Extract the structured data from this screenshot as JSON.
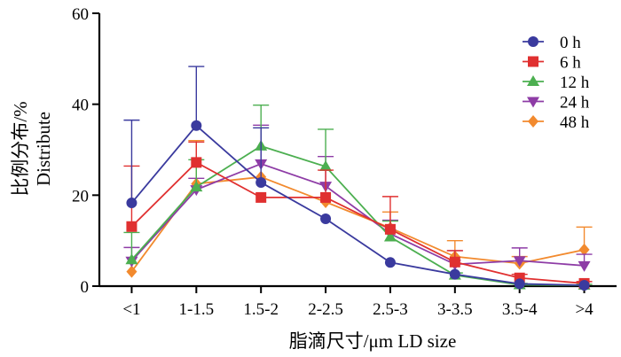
{
  "chart_data": {
    "type": "line",
    "title": "",
    "xlabel": "脂滴尺寸/μm LD size",
    "ylabel_lines": [
      "比例分布/%",
      "Distribute"
    ],
    "ylim": [
      0,
      60
    ],
    "yticks": [
      0,
      20,
      40,
      60
    ],
    "categories": [
      "<1",
      "1-1.5",
      "1.5-2",
      "2-2.5",
      "2.5-3",
      "3-3.5",
      "3.5-4",
      ">4"
    ],
    "legend_position": "top-right",
    "series": [
      {
        "name": "0 h",
        "color": "#3a3a9e",
        "marker": "circle",
        "values": [
          18.3,
          35.3,
          22.8,
          14.8,
          5.2,
          2.6,
          0.5,
          0.2
        ],
        "errors": [
          18.2,
          13.0,
          12.0,
          0,
          0,
          0,
          0,
          0
        ]
      },
      {
        "name": "6 h",
        "color": "#e03030",
        "marker": "square",
        "values": [
          13.1,
          27.2,
          19.5,
          19.5,
          12.5,
          5.3,
          1.8,
          0.6
        ],
        "errors": [
          13.3,
          4.5,
          0,
          6.0,
          7.2,
          2.5,
          0.8,
          0.4
        ]
      },
      {
        "name": "12 h",
        "color": "#4caf50",
        "marker": "triangle-up",
        "values": [
          5.8,
          21.8,
          30.8,
          26.3,
          10.8,
          2.4,
          0.3,
          0.2
        ],
        "errors": [
          6.0,
          6.0,
          9.0,
          8.2,
          3.5,
          0.5,
          0.3,
          0.2
        ]
      },
      {
        "name": "24 h",
        "color": "#8e3ca6",
        "marker": "triangle-down",
        "values": [
          5.5,
          21.2,
          26.9,
          22.0,
          11.5,
          4.8,
          5.6,
          4.5
        ],
        "errors": [
          3.0,
          2.5,
          8.5,
          6.5,
          3.0,
          3.0,
          2.8,
          2.5
        ]
      },
      {
        "name": "48 h",
        "color": "#f28a2e",
        "marker": "diamond",
        "values": [
          3.2,
          22.5,
          24.0,
          18.5,
          12.8,
          6.5,
          5.0,
          8.0
        ],
        "errors": [
          0,
          9.5,
          0,
          0,
          3.5,
          3.5,
          1.5,
          5.0
        ]
      }
    ]
  }
}
